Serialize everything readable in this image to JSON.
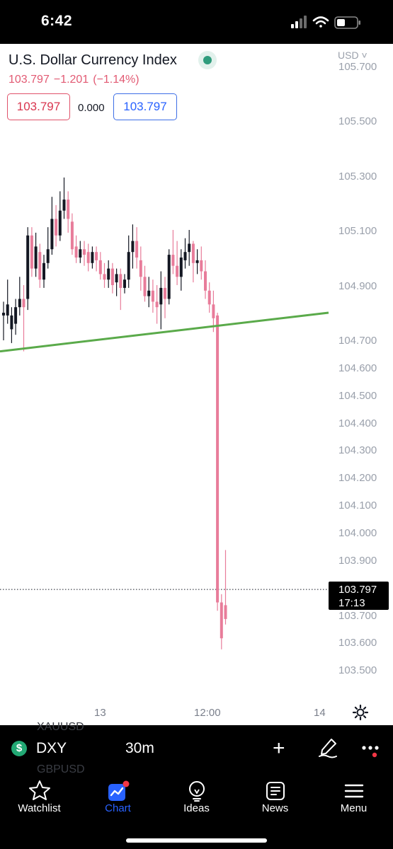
{
  "status_bar": {
    "time": "6:42"
  },
  "chart": {
    "title": "U.S. Dollar Currency Index",
    "quote": {
      "price": "103.797",
      "change": "−1.201",
      "change_pct": "(−1.14%)"
    },
    "sell_price": "103.797",
    "spread": "0.000",
    "buy_price": "103.797",
    "currency": "USD ˅",
    "price_axis": [
      "105.700",
      "105.500",
      "105.300",
      "105.100",
      "104.900",
      "104.700",
      "104.600",
      "104.500",
      "104.400",
      "104.300",
      "104.200",
      "104.100",
      "104.000",
      "103.900",
      "103.700",
      "103.600",
      "103.500"
    ],
    "last_price_label": {
      "price": "103.797",
      "countdown": "17:13"
    },
    "time_axis": [
      "13",
      "12:00",
      "14"
    ],
    "colors": {
      "up": "#131722",
      "down": "#e87c9a",
      "trendline": "#5aaa4a"
    }
  },
  "chart_data": {
    "type": "candlestick",
    "title": "",
    "ylim": [
      103.46,
      105.73
    ],
    "x_labels": [
      "13",
      "12:00",
      "14"
    ],
    "candles": [
      [
        104.79,
        104.84,
        104.8,
        104.7
      ],
      [
        104.79,
        104.92,
        104.83,
        104.76
      ],
      [
        104.74,
        104.82,
        104.79,
        104.69
      ],
      [
        104.76,
        104.85,
        104.82,
        104.72
      ],
      [
        104.82,
        104.93,
        104.85,
        104.79
      ],
      [
        104.85,
        104.9,
        104.82,
        104.66
      ],
      [
        104.85,
        105.11,
        105.08,
        104.81
      ],
      [
        105.08,
        105.11,
        104.96,
        104.93
      ],
      [
        104.96,
        105.09,
        105.04,
        104.93
      ],
      [
        105.02,
        105.05,
        104.92,
        104.89
      ],
      [
        104.92,
        105.01,
        104.98,
        104.89
      ],
      [
        104.98,
        105.11,
        105.03,
        104.96
      ],
      [
        105.03,
        105.22,
        105.14,
        105.01
      ],
      [
        105.14,
        105.19,
        105.08,
        105.04
      ],
      [
        105.08,
        105.24,
        105.17,
        105.06
      ],
      [
        105.17,
        105.29,
        105.21,
        105.14
      ],
      [
        105.21,
        105.24,
        105.14,
        105.09
      ],
      [
        105.13,
        105.16,
        105.03,
        105.01
      ],
      [
        105.04,
        105.08,
        105.0,
        104.98
      ],
      [
        105.0,
        105.06,
        105.03,
        104.98
      ],
      [
        105.03,
        105.06,
        105.01,
        104.97
      ],
      [
        105.02,
        105.05,
        104.98,
        104.95
      ],
      [
        104.98,
        105.04,
        105.02,
        104.96
      ],
      [
        105.02,
        105.04,
        104.99,
        104.95
      ],
      [
        104.99,
        105.02,
        104.94,
        104.92
      ],
      [
        104.94,
        104.98,
        104.92,
        104.89
      ],
      [
        104.92,
        104.99,
        104.96,
        104.89
      ],
      [
        104.96,
        104.98,
        104.9,
        104.87
      ],
      [
        104.91,
        104.96,
        104.94,
        104.86
      ],
      [
        104.94,
        104.96,
        104.89,
        104.81
      ],
      [
        104.89,
        104.94,
        104.92,
        104.87
      ],
      [
        104.92,
        105.08,
        105.02,
        104.89
      ],
      [
        105.02,
        105.12,
        105.06,
        104.96
      ],
      [
        105.06,
        105.11,
        105.0,
        104.96
      ],
      [
        104.99,
        105.04,
        104.93,
        104.88
      ],
      [
        104.93,
        104.97,
        104.86,
        104.84
      ],
      [
        104.86,
        104.93,
        104.88,
        104.82
      ],
      [
        104.88,
        104.92,
        104.84,
        104.8
      ],
      [
        104.84,
        104.9,
        104.82,
        104.76
      ],
      [
        104.83,
        104.95,
        104.89,
        104.74
      ],
      [
        104.89,
        104.93,
        104.85,
        104.78
      ],
      [
        104.85,
        105.03,
        105.01,
        104.83
      ],
      [
        105.01,
        105.1,
        104.97,
        104.94
      ],
      [
        104.97,
        105.06,
        104.93,
        104.9
      ],
      [
        104.93,
        105.03,
        105.0,
        104.88
      ],
      [
        104.99,
        105.07,
        105.02,
        104.96
      ],
      [
        105.02,
        105.1,
        105.05,
        104.97
      ],
      [
        105.05,
        105.06,
        104.98,
        104.91
      ],
      [
        104.98,
        105.03,
        104.99,
        104.94
      ],
      [
        104.99,
        105.04,
        104.95,
        104.92
      ],
      [
        104.95,
        104.99,
        104.88,
        104.85
      ],
      [
        104.88,
        104.91,
        104.83,
        104.8
      ],
      [
        104.83,
        104.88,
        104.78,
        104.73
      ],
      [
        104.79,
        104.8,
        103.75,
        103.72
      ],
      [
        103.75,
        103.78,
        103.62,
        103.58
      ],
      [
        103.74,
        103.94,
        103.69,
        103.67
      ]
    ],
    "trendline": {
      "from": [
        0,
        104.66
      ],
      "to": [
        57,
        104.8
      ]
    },
    "last_price": 103.797
  },
  "symbol_bar": {
    "symbol": "DXY",
    "interval": "30m",
    "ghost_above": "XAUUSD",
    "ghost_below": "GBPUSD"
  },
  "tabs": [
    {
      "label": "Watchlist",
      "icon": "star-icon"
    },
    {
      "label": "Chart",
      "icon": "chart-icon"
    },
    {
      "label": "Ideas",
      "icon": "lightbulb-icon"
    },
    {
      "label": "News",
      "icon": "newspaper-icon"
    },
    {
      "label": "Menu",
      "icon": "hamburger-icon"
    }
  ]
}
